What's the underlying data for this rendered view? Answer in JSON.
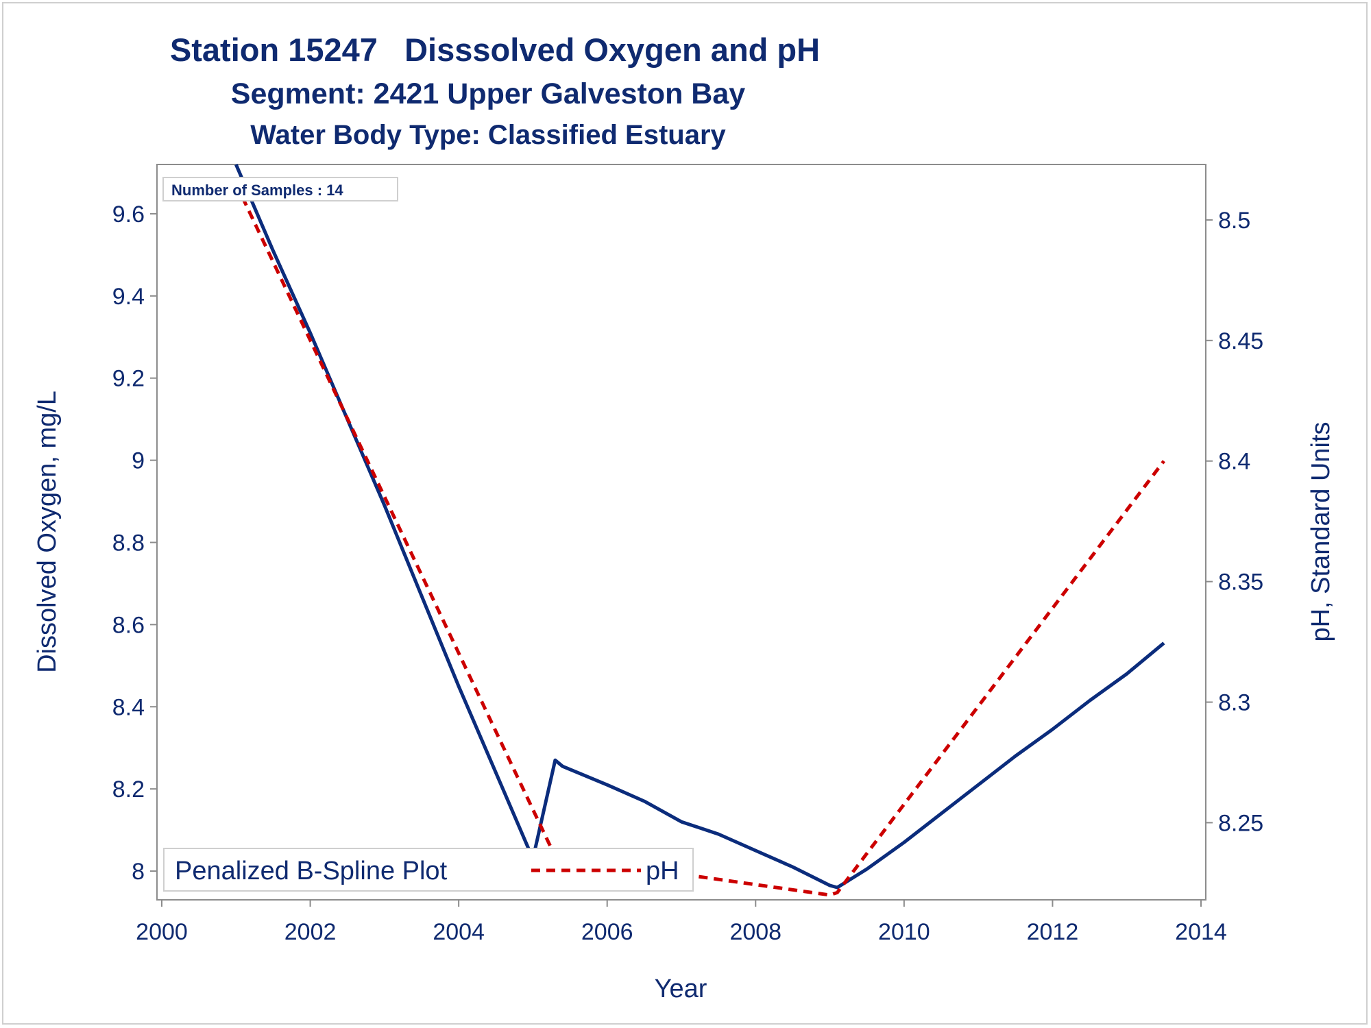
{
  "titles": {
    "line1": "Station 15247   Disssolved Oxygen and pH",
    "line2": "Segment: 2421  Upper Galveston Bay",
    "line3": "Water Body Type: Classified Estuary"
  },
  "inset": {
    "text": "Number of Samples : 14"
  },
  "legend": {
    "title": "Penalized B-Spline Plot",
    "entry_label": "pH"
  },
  "colors": {
    "text": "#0f2a70",
    "do_line": "#0b2c7c",
    "ph_line": "#cc0000",
    "axis": "#8c8c8c"
  },
  "chart_data": {
    "type": "line",
    "xlabel": "Year",
    "ylabel_left": "Dissolved Oxygen, mg/L",
    "ylabel_right": "pH, Standard Units",
    "xlim": [
      2000,
      2014
    ],
    "ylim_left": [
      7.93,
      9.72
    ],
    "ylim_right": [
      8.218,
      8.523
    ],
    "x_ticks": [
      "2000",
      "2002",
      "2004",
      "2006",
      "2008",
      "2010",
      "2012",
      "2014"
    ],
    "y_left_ticks": [
      "8",
      "8.2",
      "8.4",
      "8.6",
      "8.8",
      "9",
      "9.2",
      "9.4",
      "9.6"
    ],
    "y_right_ticks": [
      "8.25",
      "8.3",
      "8.35",
      "8.4",
      "8.45",
      "8.5"
    ],
    "series": [
      {
        "axis": "left",
        "style": "solid",
        "x": [
          2001.0,
          2001.5,
          2002.0,
          2002.5,
          2003.0,
          2003.5,
          2004.0,
          2004.5,
          2005.0,
          2005.3,
          2005.4,
          2005.6,
          2006.0,
          2006.5,
          2007.0,
          2007.5,
          2008.0,
          2008.5,
          2009.0,
          2009.1,
          2009.5,
          2010.0,
          2010.5,
          2011.0,
          2011.5,
          2012.0,
          2012.5,
          2013.0,
          2013.5
        ],
        "y": [
          9.72,
          9.51,
          9.31,
          9.1,
          8.89,
          8.67,
          8.45,
          8.24,
          8.03,
          8.27,
          8.255,
          8.24,
          8.21,
          8.17,
          8.12,
          8.09,
          8.05,
          8.01,
          7.965,
          7.96,
          8.005,
          8.07,
          8.14,
          8.21,
          8.28,
          8.345,
          8.415,
          8.48,
          8.555
        ]
      },
      {
        "name": "pH",
        "axis": "right",
        "style": "dashed",
        "x": [
          2001.0,
          2005.3,
          2009.0,
          2009.1,
          2013.5
        ],
        "y": [
          8.515,
          8.236,
          8.22,
          8.221,
          8.4
        ]
      }
    ]
  }
}
